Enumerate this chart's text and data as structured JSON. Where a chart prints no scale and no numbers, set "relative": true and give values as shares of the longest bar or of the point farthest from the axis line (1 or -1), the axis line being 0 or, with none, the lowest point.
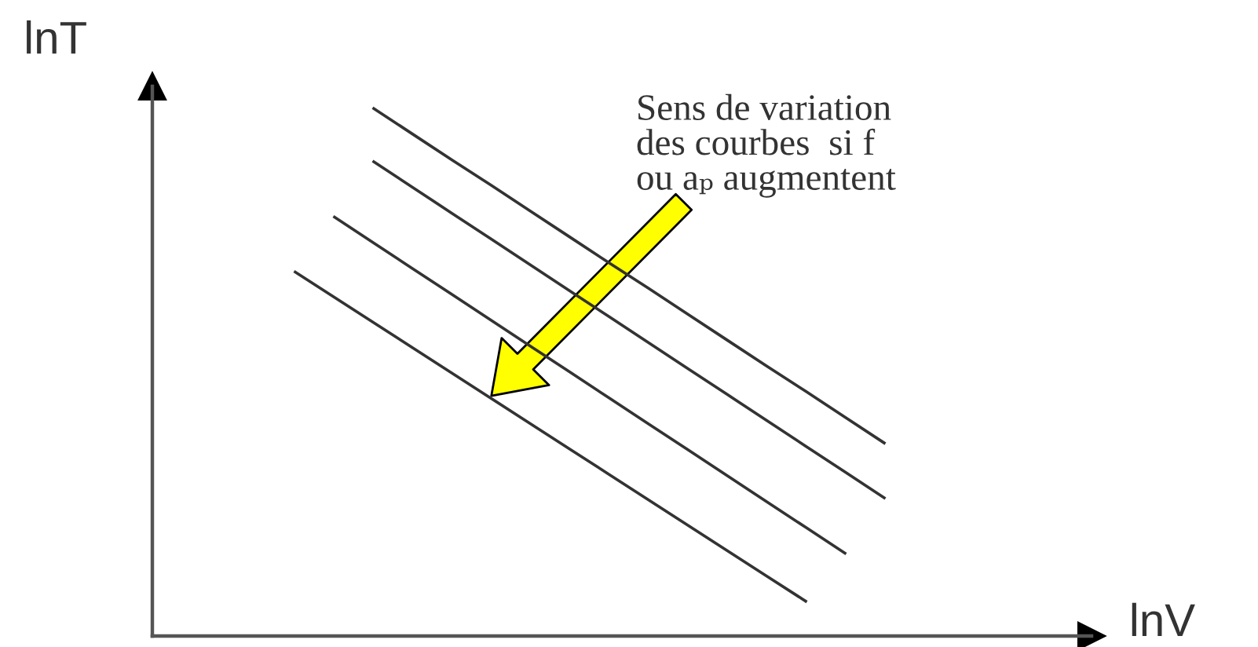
{
  "chart_data": {
    "type": "line",
    "relative": true,
    "xlabel": "lnV",
    "ylabel": "lnT",
    "line_style": "solid",
    "categories": [
      null,
      null,
      null,
      null,
      null,
      null,
      null,
      null,
      null,
      null,
      null,
      null,
      null,
      null,
      null,
      null
    ],
    "series": [
      {
        "color": "#333333",
        "values": [
          null,
          null,
          1.0,
          0.951,
          0.902,
          0.854,
          0.805,
          0.756,
          0.707,
          0.659,
          0.61,
          0.561,
          0.512,
          0.464,
          0.415,
          0.366
        ]
      },
      {
        "color": "#333333",
        "values": [
          null,
          null,
          0.899,
          0.85,
          0.801,
          0.752,
          0.703,
          0.654,
          0.605,
          0.556,
          0.507,
          0.458,
          0.409,
          0.36,
          0.311,
          0.262
        ]
      },
      {
        "color": "#333333",
        "values": [
          null,
          0.794,
          0.745,
          0.696,
          0.647,
          0.598,
          0.549,
          0.5,
          0.451,
          0.402,
          0.353,
          0.304,
          0.255,
          0.206,
          0.157,
          null
        ]
      },
      {
        "color": "#333333",
        "values": [
          0.69,
          0.642,
          0.594,
          0.546,
          0.498,
          0.45,
          0.402,
          0.354,
          0.306,
          0.258,
          0.21,
          0.162,
          0.114,
          0.066,
          null,
          null
        ]
      }
    ],
    "annotations": [
      "Sens de variation\ndes courbes  si f\nou aₚ augmentent"
    ]
  }
}
